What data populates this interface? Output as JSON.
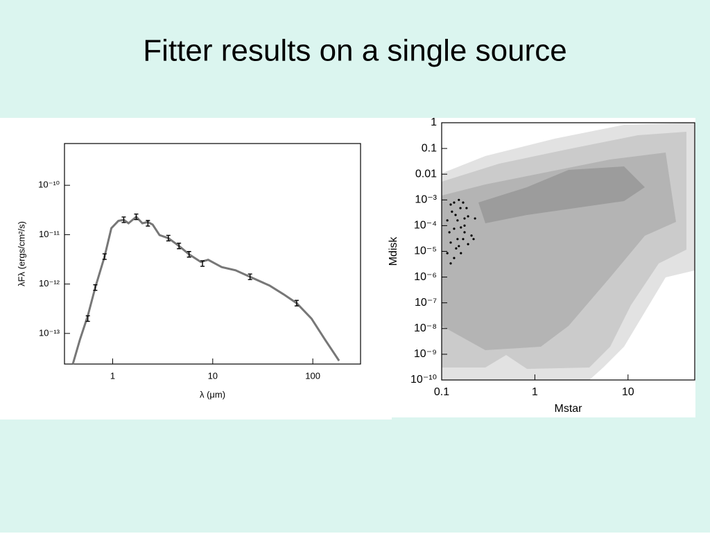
{
  "slide": {
    "title": "Fitter results on a single source"
  },
  "chart_data": [
    {
      "type": "line",
      "xlabel": "λ (μm)",
      "ylabel": "λFλ (ergs/cm²/s)",
      "xlog": true,
      "ylog": true,
      "xlim": [
        0.33,
        300
      ],
      "ylim": [
        2.4e-14,
        7e-10
      ],
      "xticks": [
        1,
        10,
        100
      ],
      "yticks": [
        {
          "value": 1e-13,
          "label": "10⁻¹³"
        },
        {
          "value": 1e-12,
          "label": "10⁻¹²"
        },
        {
          "value": 1e-11,
          "label": "10⁻¹¹"
        },
        {
          "value": 1e-10,
          "label": "10⁻¹⁰"
        }
      ],
      "series": [
        {
          "color": "#777777",
          "mode": "line",
          "x": [
            0.4,
            0.47,
            0.565,
            0.67,
            0.83,
            0.97,
            1.14,
            1.29,
            1.44,
            1.72,
            1.98,
            2.25,
            2.51,
            2.94,
            3.6,
            4.6,
            5.8,
            7.6,
            9.0,
            12.3,
            16.9,
            23.6,
            37,
            51,
            69,
            97,
            133,
            183
          ],
          "values": [
            2.4e-14,
            7.4e-14,
            2.3e-13,
            8.5e-13,
            3.6e-12,
            1.35e-11,
            1.9e-11,
            2e-11,
            1.7e-11,
            2.3e-11,
            1.7e-11,
            1.8e-11,
            1.6e-11,
            9.8e-12,
            8.5e-12,
            5.9e-12,
            4e-12,
            2.8e-12,
            3.1e-12,
            2.2e-12,
            1.9e-12,
            1.4e-12,
            9.3e-13,
            6.2e-13,
            4.1e-13,
            2e-13,
            7.4e-14,
            2.8e-14
          ]
        },
        {
          "color": "#000000",
          "mode": "markers",
          "x": [
            0.565,
            0.67,
            0.83,
            1.29,
            1.72,
            2.25,
            3.6,
            4.6,
            5.8,
            7.9,
            23.6,
            69
          ],
          "values": [
            2e-13,
            8.5e-13,
            3.6e-12,
            2e-11,
            2.3e-11,
            1.7e-11,
            8.5e-12,
            5.9e-12,
            4e-12,
            2.6e-12,
            1.4e-12,
            4.1e-13
          ]
        }
      ]
    },
    {
      "type": "scatter",
      "xlabel": "Mstar",
      "ylabel": "Mdisk",
      "xlog": true,
      "ylog": true,
      "xlim": [
        0.1,
        52
      ],
      "ylim": [
        1e-10,
        1
      ],
      "xticks": [
        0.1,
        1,
        10
      ],
      "yticks": [
        1,
        0.1,
        0.01,
        {
          "value": 0.001,
          "label": "10⁻³"
        },
        {
          "value": 0.0001,
          "label": "10⁻⁴"
        },
        {
          "value": 1e-05,
          "label": "10⁻⁵"
        },
        {
          "value": 1e-06,
          "label": "10⁻⁶"
        },
        {
          "value": 1e-07,
          "label": "10⁻⁷"
        },
        {
          "value": 1e-08,
          "label": "10⁻⁸"
        },
        {
          "value": 1e-09,
          "label": "10⁻⁹"
        },
        {
          "value": 1e-10,
          "label": "10⁻¹⁰"
        }
      ],
      "series": [
        {
          "color": "#000000",
          "mode": "markers",
          "x": [
            0.125,
            0.136,
            0.153,
            0.17,
            0.185,
            0.159,
            0.141,
            0.129,
            0.115,
            0.148,
            0.176,
            0.192,
            0.228,
            0.161,
            0.136,
            0.121,
            0.176,
            0.209,
            0.148,
            0.125,
            0.17,
            0.192,
            0.143,
            0.115,
            0.161,
            0.136,
            0.125,
            0.22,
            0.153,
            0.176
          ],
          "values": [
            0.00066,
            0.00079,
            0.001,
            0.00079,
            0.00048,
            0.00048,
            0.00026,
            0.00035,
            0.00016,
            0.00016,
            0.00019,
            0.00023,
            0.00019,
            8.5e-05,
            7.6e-05,
            5.5e-05,
            5.5e-05,
            4.1e-05,
            3e-05,
            2.2e-05,
            3e-05,
            1.9e-05,
            1.3e-05,
            8.5e-06,
            8.5e-06,
            5.5e-06,
            3.4e-06,
            3e-05,
            1.6e-05,
            0.0001
          ]
        }
      ]
    }
  ]
}
